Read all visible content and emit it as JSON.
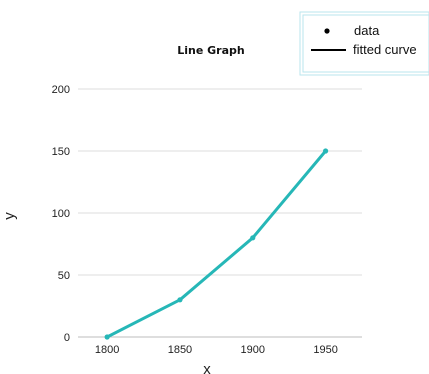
{
  "chart_data": {
    "type": "line",
    "title": "Line Graph",
    "xlabel": "x",
    "ylabel": "y",
    "x": [
      1800,
      1850,
      1900,
      1950
    ],
    "series": [
      {
        "name": "data",
        "values": [
          0,
          30,
          80,
          150
        ]
      }
    ],
    "xticks": [
      "1800",
      "1850",
      "1900",
      "1950"
    ],
    "yticks": [
      "0",
      "50",
      "100",
      "150",
      "200"
    ],
    "xlim": [
      1780,
      1975
    ],
    "ylim": [
      0,
      200
    ],
    "grid": "horizontal",
    "legend": {
      "placement": "top-right",
      "entries": [
        {
          "label": "data",
          "symbol": "dot"
        },
        {
          "label": "fitted curve",
          "symbol": "line"
        }
      ]
    },
    "colors": {
      "series": "#26b7b7",
      "grid": "#dcdcdc",
      "legend_border": "#b9e6ee",
      "legend_line": "#000000"
    }
  }
}
